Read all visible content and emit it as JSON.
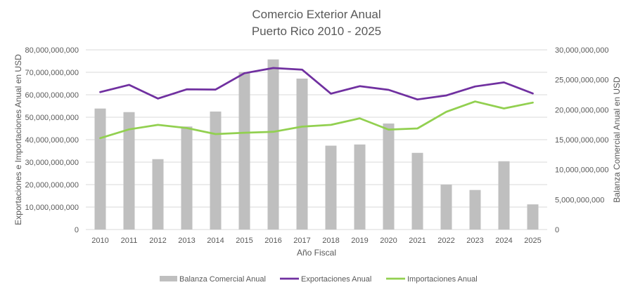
{
  "chart_data": {
    "type": "bar",
    "title": [
      "Comercio Exterior Anual",
      "Puerto Rico 2010 - 2025"
    ],
    "xlabel": "Año Fiscal",
    "ylabel": "Exportaciones e Importaciones Anual en USD",
    "y2label": "Balanza Comercial Anual en USD",
    "categories": [
      "2010",
      "2011",
      "2012",
      "2013",
      "2014",
      "2015",
      "2016",
      "2017",
      "2018",
      "2019",
      "2020",
      "2021",
      "2022",
      "2023",
      "2024",
      "2025"
    ],
    "ylim": [
      0,
      80000000000
    ],
    "y2lim": [
      0,
      30000000000
    ],
    "yticks": [
      0,
      10000000000,
      20000000000,
      30000000000,
      40000000000,
      50000000000,
      60000000000,
      70000000000,
      80000000000
    ],
    "ytick_labels": [
      "0",
      "10,000,000,000",
      "20,000,000,000",
      "30,000,000,000",
      "40,000,000,000",
      "50,000,000,000",
      "60,000,000,000",
      "70,000,000,000",
      "80,000,000,000"
    ],
    "y2ticks": [
      0,
      5000000000,
      10000000000,
      15000000000,
      20000000000,
      25000000000,
      30000000000
    ],
    "y2tick_labels": [
      "0",
      "5,000,000,000",
      "10,000,000,000",
      "15,000,000,000",
      "20,000,000,000",
      "25,000,000,000",
      "30,000,000,000"
    ],
    "grid": true,
    "legend_position": "bottom",
    "series": [
      {
        "name": "Balanza Comercial Anual",
        "type": "bar",
        "axis": "right",
        "color": "#BFBFBF",
        "values": [
          20200000000,
          19600000000,
          11750000000,
          17200000000,
          19700000000,
          26300000000,
          28400000000,
          25200000000,
          14000000000,
          14200000000,
          17700000000,
          12800000000,
          7500000000,
          6600000000,
          11400000000,
          4200000000
        ]
      },
      {
        "name": "Exportaciones Anual",
        "type": "line",
        "axis": "left",
        "color": "#7030A0",
        "values": [
          61200000000,
          64400000000,
          58300000000,
          62400000000,
          62300000000,
          69600000000,
          71900000000,
          71200000000,
          60500000000,
          63800000000,
          62200000000,
          57900000000,
          59700000000,
          63700000000,
          65500000000,
          60600000000
        ]
      },
      {
        "name": "Importaciones Anual",
        "type": "line",
        "axis": "left",
        "color": "#92D050",
        "values": [
          40700000000,
          44600000000,
          46600000000,
          45200000000,
          42500000000,
          43100000000,
          43500000000,
          45800000000,
          46600000000,
          49500000000,
          44500000000,
          45000000000,
          52400000000,
          57000000000,
          53900000000,
          56500000000
        ]
      }
    ]
  }
}
